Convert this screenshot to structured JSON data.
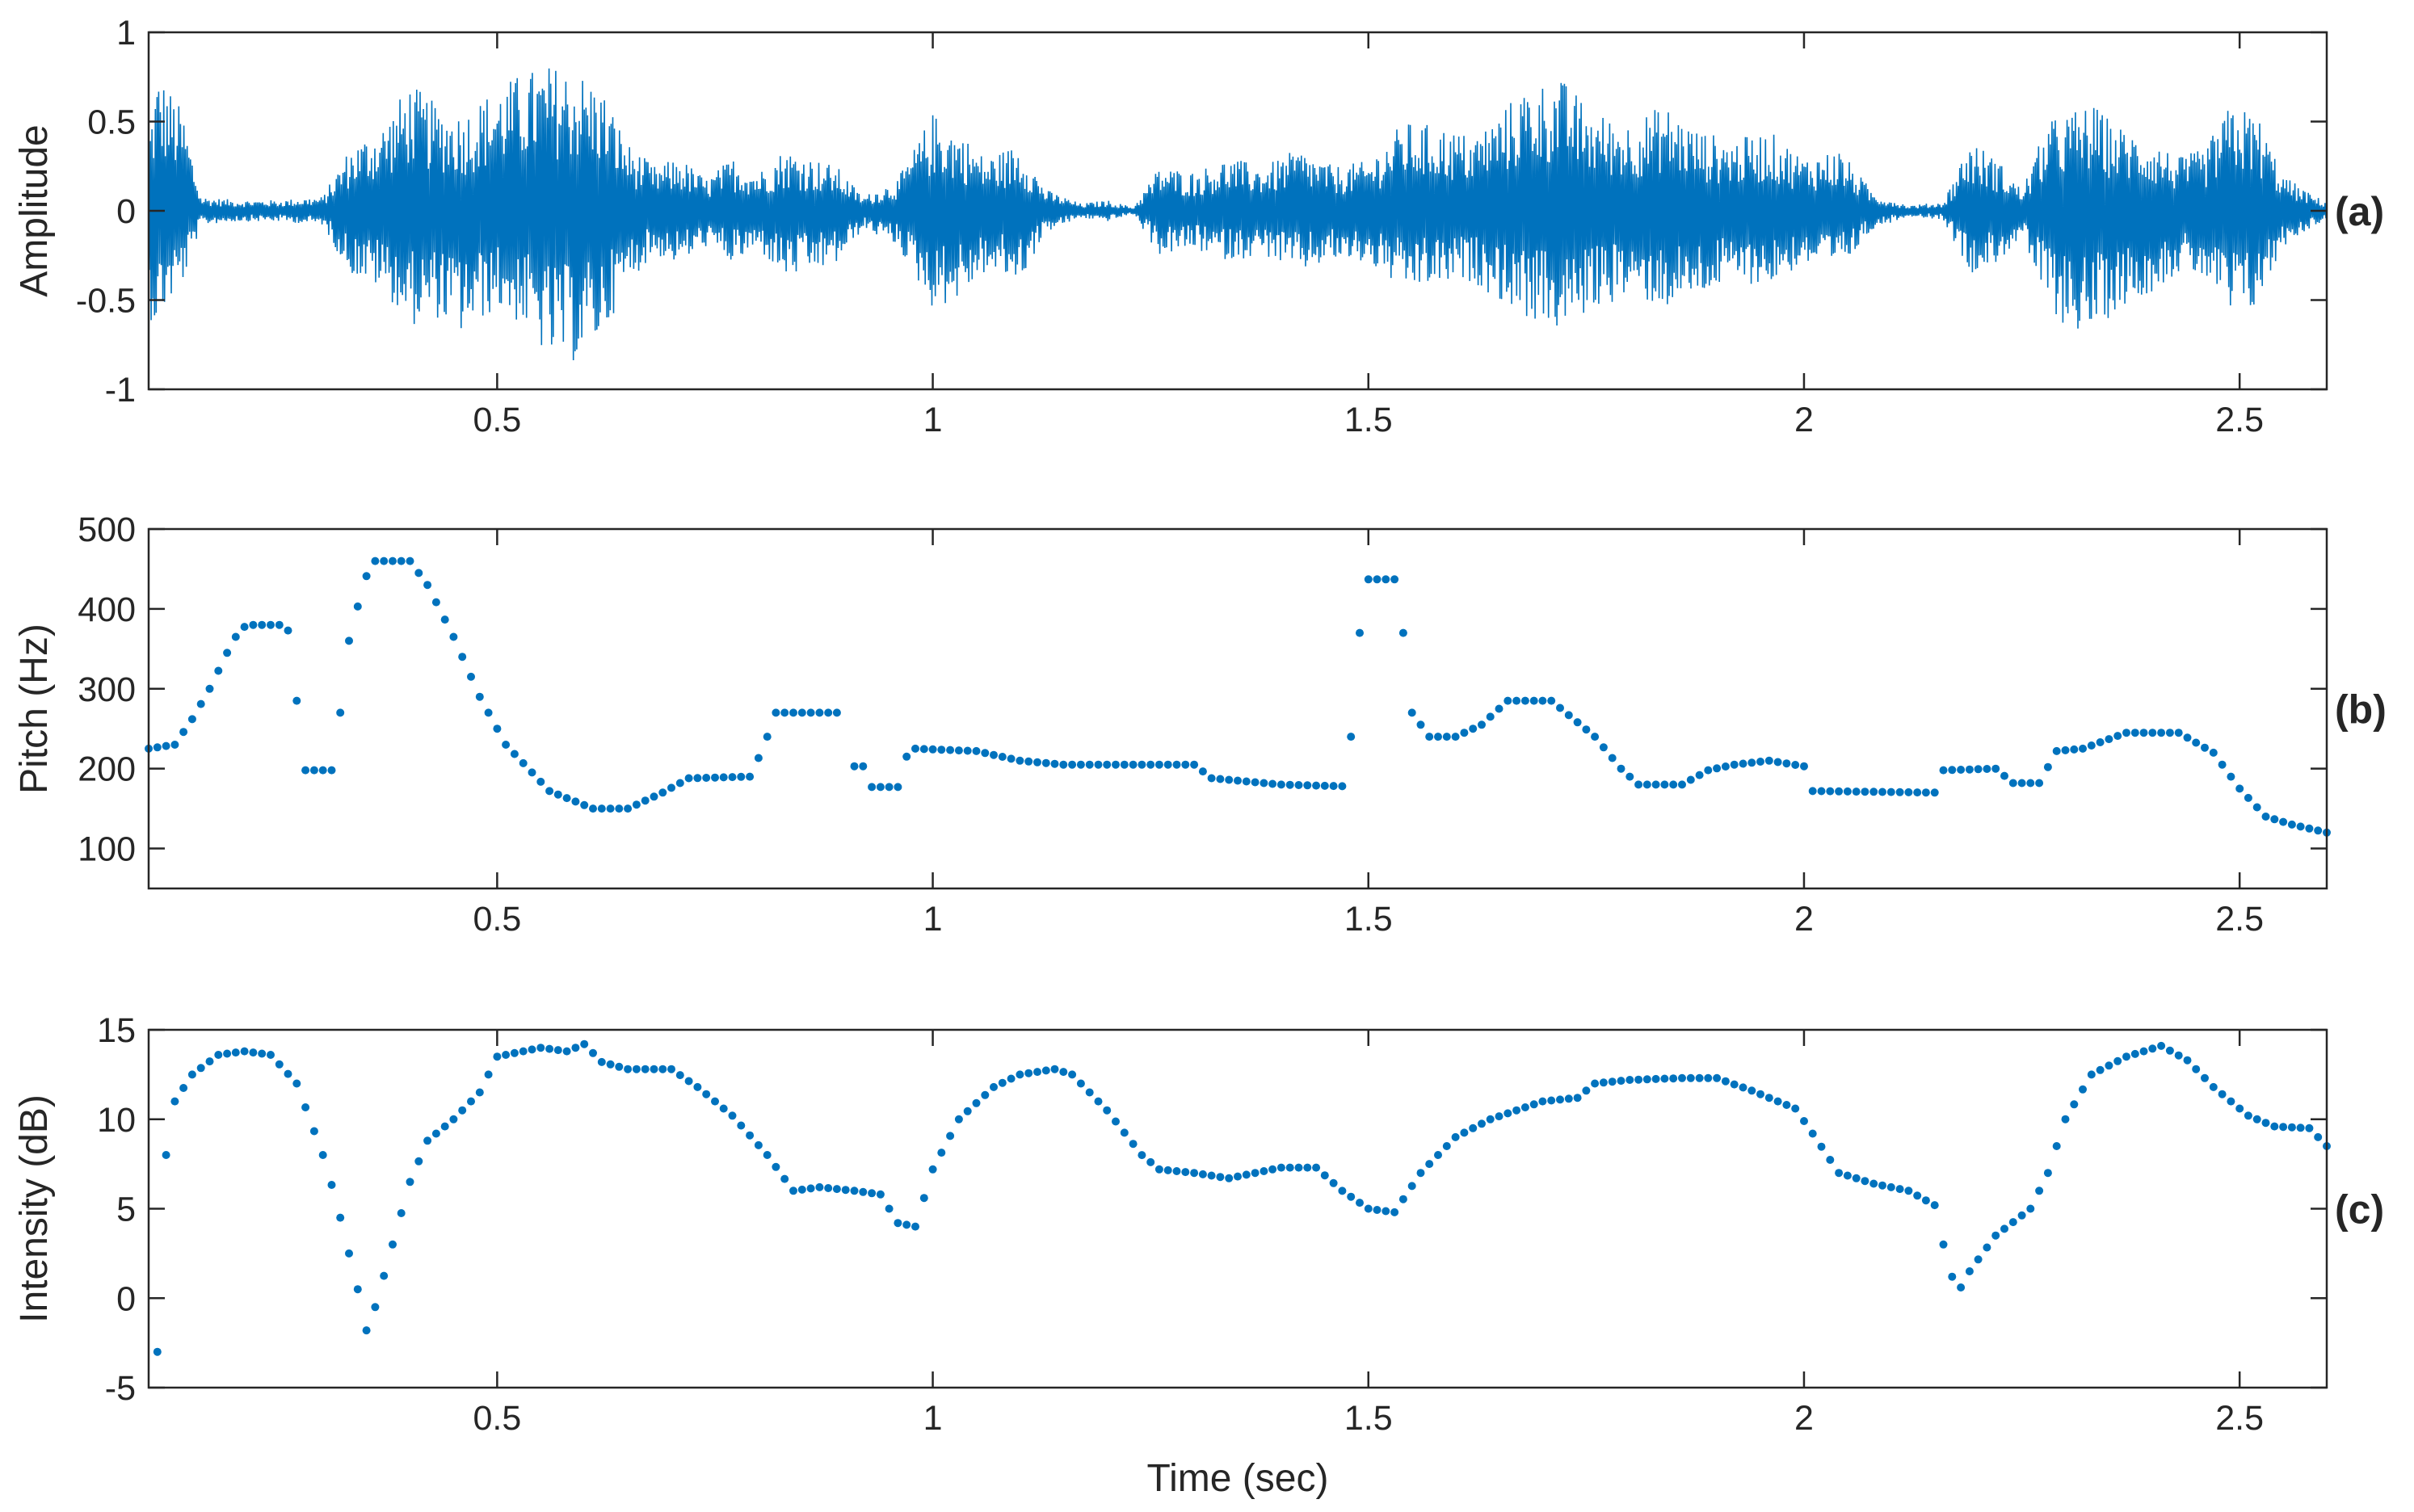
{
  "colors": {
    "series": "#0072BD",
    "axes": "#262626",
    "background": "#ffffff"
  },
  "chart_data": [
    {
      "type": "line",
      "panel_label": "(a)",
      "xlabel": "",
      "ylabel": "Amplitude",
      "xlim": [
        0.1,
        2.6
      ],
      "ylim": [
        -1,
        1
      ],
      "xticks": [
        0.5,
        1,
        1.5,
        2,
        2.5
      ],
      "xtick_labels": [
        "0.5",
        "1",
        "1.5",
        "2",
        "2.5"
      ],
      "yticks": [
        -1,
        -0.5,
        0,
        0.5,
        1
      ],
      "ytick_labels": [
        "-1",
        "-0.5",
        "0",
        "0.5",
        "1"
      ],
      "series": [
        {
          "envelope": {
            "x": [
              0.1,
              0.11,
              0.12,
              0.14,
              0.16,
              0.2,
              0.25,
              0.3,
              0.33,
              0.37,
              0.4,
              0.43,
              0.46,
              0.5,
              0.53,
              0.56,
              0.59,
              0.62,
              0.65,
              0.68,
              0.71,
              0.74,
              0.77,
              0.8,
              0.83,
              0.86,
              0.89,
              0.92,
              0.96,
              1.0,
              1.03,
              1.06,
              1.1,
              1.13,
              1.17,
              1.2,
              1.23,
              1.26,
              1.3,
              1.34,
              1.38,
              1.42,
              1.46,
              1.5,
              1.54,
              1.58,
              1.62,
              1.65,
              1.68,
              1.72,
              1.76,
              1.8,
              1.84,
              1.88,
              1.92,
              1.96,
              2.0,
              2.04,
              2.08,
              2.12,
              2.16,
              2.19,
              2.22,
              2.25,
              2.28,
              2.3,
              2.33,
              2.36,
              2.4,
              2.43,
              2.46,
              2.49,
              2.52,
              2.55,
              2.58,
              2.6
            ],
            "upper": [
              0.45,
              0.78,
              0.72,
              0.55,
              0.08,
              0.06,
              0.06,
              0.08,
              0.35,
              0.5,
              0.72,
              0.6,
              0.55,
              0.7,
              0.78,
              0.82,
              0.8,
              0.7,
              0.38,
              0.25,
              0.3,
              0.18,
              0.3,
              0.22,
              0.35,
              0.3,
              0.25,
              0.08,
              0.18,
              0.55,
              0.45,
              0.3,
              0.38,
              0.12,
              0.04,
              0.06,
              0.02,
              0.25,
              0.22,
              0.3,
              0.25,
              0.35,
              0.25,
              0.28,
              0.5,
              0.48,
              0.42,
              0.55,
              0.7,
              0.75,
              0.55,
              0.5,
              0.6,
              0.45,
              0.4,
              0.45,
              0.3,
              0.35,
              0.1,
              0.03,
              0.05,
              0.4,
              0.3,
              0.12,
              0.5,
              0.55,
              0.6,
              0.48,
              0.4,
              0.3,
              0.35,
              0.6,
              0.55,
              0.2,
              0.1,
              0.05
            ],
            "lower": [
              -0.6,
              -0.65,
              -0.55,
              -0.4,
              -0.08,
              -0.06,
              -0.06,
              -0.08,
              -0.35,
              -0.45,
              -0.65,
              -0.6,
              -0.7,
              -0.55,
              -0.65,
              -0.85,
              -0.85,
              -0.72,
              -0.4,
              -0.25,
              -0.3,
              -0.2,
              -0.3,
              -0.22,
              -0.38,
              -0.35,
              -0.3,
              -0.1,
              -0.2,
              -0.55,
              -0.5,
              -0.35,
              -0.4,
              -0.12,
              -0.04,
              -0.06,
              -0.02,
              -0.25,
              -0.22,
              -0.28,
              -0.25,
              -0.35,
              -0.28,
              -0.3,
              -0.45,
              -0.42,
              -0.4,
              -0.5,
              -0.6,
              -0.68,
              -0.55,
              -0.48,
              -0.55,
              -0.48,
              -0.4,
              -0.42,
              -0.3,
              -0.35,
              -0.1,
              -0.03,
              -0.05,
              -0.35,
              -0.3,
              -0.15,
              -0.55,
              -0.65,
              -0.7,
              -0.55,
              -0.45,
              -0.35,
              -0.38,
              -0.62,
              -0.55,
              -0.2,
              -0.1,
              -0.05
            ]
          }
        }
      ]
    },
    {
      "type": "scatter",
      "panel_label": "(b)",
      "xlabel": "",
      "ylabel": "Pitch (Hz)",
      "xlim": [
        0.1,
        2.6
      ],
      "ylim": [
        50,
        500
      ],
      "xticks": [
        0.5,
        1,
        1.5,
        2,
        2.5
      ],
      "xtick_labels": [
        "0.5",
        "1",
        "1.5",
        "2",
        "2.5"
      ],
      "yticks": [
        100,
        200,
        300,
        400,
        500
      ],
      "ytick_labels": [
        "100",
        "200",
        "300",
        "400",
        "500"
      ],
      "series": [
        {
          "anchors": [
            [
              0.1,
              225
            ],
            [
              0.13,
              230
            ],
            [
              0.15,
              262
            ],
            [
              0.17,
              300
            ],
            [
              0.19,
              345
            ],
            [
              0.205,
              375
            ],
            [
              0.215,
              380
            ],
            [
              0.25,
              380
            ],
            [
              0.26,
              373
            ],
            null,
            [
              0.27,
              285
            ],
            [
              0.28,
              198
            ],
            [
              0.31,
              198
            ],
            null,
            [
              0.32,
              270
            ],
            [
              0.33,
              360
            ],
            [
              0.34,
              403
            ],
            [
              0.355,
              460
            ],
            [
              0.4,
              460
            ],
            [
              0.42,
              430
            ],
            [
              0.45,
              365
            ],
            [
              0.48,
              290
            ],
            [
              0.51,
              230
            ],
            [
              0.56,
              172
            ],
            [
              0.61,
              150
            ],
            [
              0.65,
              150
            ],
            [
              0.69,
              170
            ],
            [
              0.72,
              188
            ],
            [
              0.79,
              190
            ],
            [
              0.805,
              225
            ],
            [
              0.82,
              270
            ],
            [
              0.89,
              270
            ],
            null,
            [
              0.91,
              203
            ],
            [
              0.92,
              203
            ],
            null,
            [
              0.93,
              177
            ],
            [
              0.96,
              177
            ],
            null,
            [
              0.97,
              215
            ],
            [
              0.98,
              225
            ],
            [
              1.05,
              222
            ],
            [
              1.1,
              210
            ],
            [
              1.15,
              205
            ],
            [
              1.3,
              205
            ],
            [
              1.32,
              188
            ],
            [
              1.4,
              180
            ],
            [
              1.47,
              178
            ],
            null,
            [
              1.48,
              240
            ],
            [
              1.49,
              370
            ],
            [
              1.5,
              437
            ],
            [
              1.53,
              437
            ],
            [
              1.54,
              370
            ],
            null,
            [
              1.55,
              270
            ],
            [
              1.57,
              240
            ],
            [
              1.6,
              240
            ],
            [
              1.63,
              255
            ],
            [
              1.66,
              285
            ],
            [
              1.71,
              285
            ],
            [
              1.76,
              240
            ],
            [
              1.79,
              200
            ],
            [
              1.81,
              180
            ],
            [
              1.86,
              180
            ],
            [
              1.89,
              198
            ],
            [
              1.92,
              205
            ],
            [
              1.96,
              210
            ],
            [
              2.0,
              203
            ],
            [
              2.01,
              172
            ],
            [
              2.15,
              170
            ],
            [
              2.16,
              198
            ],
            [
              2.22,
              200
            ],
            [
              2.24,
              182
            ],
            [
              2.27,
              182
            ],
            [
              2.29,
              222
            ],
            [
              2.32,
              225
            ],
            [
              2.37,
              245
            ],
            [
              2.43,
              245
            ],
            [
              2.47,
              220
            ],
            [
              2.5,
              175
            ],
            [
              2.53,
              140
            ],
            [
              2.56,
              130
            ],
            [
              2.6,
              120
            ]
          ]
        }
      ]
    },
    {
      "type": "scatter",
      "panel_label": "(c)",
      "xlabel": "Time (sec)",
      "ylabel": "Intensity (dB)",
      "xlim": [
        0.1,
        2.6
      ],
      "ylim": [
        -5,
        15
      ],
      "xticks": [
        0.5,
        1,
        1.5,
        2,
        2.5
      ],
      "xtick_labels": [
        "0.5",
        "1",
        "1.5",
        "2",
        "2.5"
      ],
      "yticks": [
        -5,
        0,
        5,
        10,
        15
      ],
      "ytick_labels": [
        "-5",
        "0",
        "5",
        "10",
        "15"
      ],
      "series": [
        {
          "anchors": [
            [
              0.11,
              -3.0
            ],
            [
              0.12,
              8.0
            ],
            [
              0.13,
              11.0
            ],
            [
              0.15,
              12.5
            ],
            [
              0.18,
              13.6
            ],
            [
              0.21,
              13.8
            ],
            [
              0.24,
              13.6
            ],
            [
              0.27,
              12.0
            ],
            [
              0.3,
              8.0
            ],
            [
              0.315,
              5.5
            ],
            [
              0.33,
              2.5
            ],
            [
              0.34,
              0.5
            ],
            [
              0.35,
              -1.8
            ],
            [
              0.36,
              -0.5
            ],
            [
              0.38,
              3.0
            ],
            [
              0.4,
              6.5
            ],
            [
              0.42,
              8.8
            ],
            [
              0.45,
              10.0
            ],
            [
              0.48,
              11.5
            ],
            [
              0.5,
              13.5
            ],
            [
              0.55,
              14.0
            ],
            [
              0.58,
              13.8
            ],
            [
              0.6,
              14.2
            ],
            [
              0.62,
              13.2
            ],
            [
              0.65,
              12.8
            ],
            [
              0.7,
              12.8
            ],
            [
              0.73,
              11.8
            ],
            [
              0.77,
              10.2
            ],
            [
              0.81,
              8.0
            ],
            [
              0.84,
              6.0
            ],
            [
              0.87,
              6.2
            ],
            [
              0.91,
              6.0
            ],
            [
              0.94,
              5.8
            ],
            [
              0.96,
              4.2
            ],
            [
              0.98,
              4.0
            ],
            [
              1.0,
              7.2
            ],
            [
              1.03,
              10.0
            ],
            [
              1.07,
              11.8
            ],
            [
              1.1,
              12.5
            ],
            [
              1.14,
              12.8
            ],
            [
              1.16,
              12.5
            ],
            [
              1.2,
              10.5
            ],
            [
              1.24,
              8.0
            ],
            [
              1.26,
              7.2
            ],
            [
              1.3,
              7.0
            ],
            [
              1.34,
              6.7
            ],
            [
              1.4,
              7.3
            ],
            [
              1.44,
              7.3
            ],
            [
              1.47,
              6.0
            ],
            [
              1.5,
              5.0
            ],
            [
              1.53,
              4.8
            ],
            [
              1.56,
              7.0
            ],
            [
              1.6,
              9.0
            ],
            [
              1.64,
              10.0
            ],
            [
              1.7,
              11.0
            ],
            [
              1.74,
              11.2
            ],
            [
              1.76,
              12.0
            ],
            [
              1.8,
              12.2
            ],
            [
              1.86,
              12.3
            ],
            [
              1.9,
              12.3
            ],
            [
              1.94,
              11.6
            ],
            [
              1.99,
              10.6
            ],
            [
              2.01,
              9.2
            ],
            [
              2.04,
              7.0
            ],
            [
              2.08,
              6.4
            ],
            [
              2.12,
              6.0
            ],
            [
              2.15,
              5.2
            ],
            [
              2.16,
              3.0
            ],
            [
              2.17,
              1.2
            ],
            [
              2.18,
              0.6
            ],
            [
              2.19,
              1.5
            ],
            [
              2.22,
              3.5
            ],
            [
              2.26,
              5.0
            ],
            [
              2.28,
              7.0
            ],
            [
              2.3,
              10.0
            ],
            [
              2.33,
              12.5
            ],
            [
              2.37,
              13.5
            ],
            [
              2.41,
              14.1
            ],
            [
              2.44,
              13.3
            ],
            [
              2.47,
              11.8
            ],
            [
              2.51,
              10.2
            ],
            [
              2.54,
              9.6
            ],
            [
              2.58,
              9.5
            ],
            [
              2.6,
              8.5
            ]
          ]
        }
      ]
    }
  ]
}
